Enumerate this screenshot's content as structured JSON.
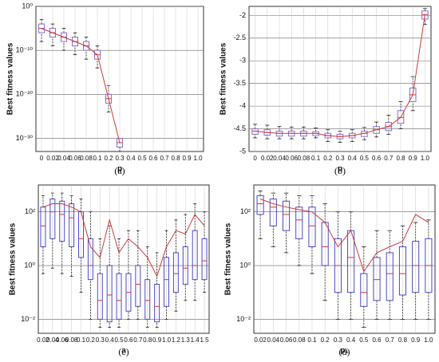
{
  "chart_data": [
    {
      "type": "box",
      "panel_label": "(a)",
      "xlabel": "p",
      "ylabel": "Best fitness values",
      "log_y": true,
      "grid": true,
      "box_color": "#8a6fd0",
      "line_color": "#d03a3a",
      "categories": [
        "0",
        "0.02",
        "0.04",
        "0.06",
        "0.08",
        "0.1",
        "0.2",
        "0.3",
        "0.4",
        "0.5",
        "0.6",
        "0.7",
        "0.8",
        "0.9",
        "1.0"
      ],
      "low": [
        1e-08,
        1e-09,
        1e-10,
        1e-11,
        1e-12,
        1e-14,
        1e-24,
        1e-33,
        null,
        null,
        null,
        null,
        null,
        null,
        null
      ],
      "q1": [
        1e-06,
        1e-07,
        1e-08,
        1e-09,
        1e-10,
        1e-12,
        1e-22,
        1e-32,
        null,
        null,
        null,
        null,
        null,
        null,
        null
      ],
      "median": [
        1e-05,
        1e-06,
        1e-07,
        1e-08,
        1e-09,
        1e-11,
        1e-21,
        1e-31,
        null,
        null,
        null,
        null,
        null,
        null,
        null
      ],
      "q3": [
        0.0001,
        1e-05,
        1e-06,
        1e-07,
        1e-08,
        1e-10,
        1e-20,
        1e-30,
        null,
        null,
        null,
        null,
        null,
        null,
        null
      ],
      "high": [
        0.001,
        0.0001,
        1e-05,
        1e-06,
        1e-07,
        1e-09,
        1e-18,
        1e-30,
        null,
        null,
        null,
        null,
        null,
        null,
        null
      ],
      "mean": [
        1e-05,
        1e-06,
        1e-07,
        1e-08,
        1e-09,
        1e-11,
        1e-21,
        1e-31,
        null,
        null,
        null,
        null,
        null,
        null,
        null
      ],
      "ylim": [
        1e-33,
        1
      ],
      "yticks": [
        {
          "value": 1,
          "label": "10⁰"
        },
        {
          "value": 1e-10,
          "label": "10⁻¹⁰"
        },
        {
          "value": 1e-20,
          "label": "10⁻²⁰"
        },
        {
          "value": 1e-30,
          "label": "10⁻³⁰"
        }
      ]
    },
    {
      "type": "box",
      "panel_label": "(b)",
      "xlabel": "p",
      "ylabel": "Best fitness values",
      "log_y": false,
      "grid": true,
      "box_color": "#8a6fd0",
      "line_color": "#d03a3a",
      "categories": [
        "0",
        "0.02",
        "0.04",
        "0.06",
        "0.08",
        "0.1",
        "0.2",
        "0.3",
        "0.4",
        "0.5",
        "0.6",
        "0.7",
        "0.8",
        "0.9",
        "1.0"
      ],
      "low": [
        -4.7,
        -4.72,
        -4.72,
        -4.72,
        -4.72,
        -4.7,
        -4.78,
        -4.8,
        -4.78,
        -4.74,
        -4.68,
        -4.62,
        -4.5,
        -4.1,
        -2.2
      ],
      "q1": [
        -4.62,
        -4.64,
        -4.66,
        -4.66,
        -4.66,
        -4.65,
        -4.7,
        -4.72,
        -4.7,
        -4.67,
        -4.6,
        -4.54,
        -4.38,
        -3.9,
        -2.08
      ],
      "median": [
        -4.55,
        -4.58,
        -4.6,
        -4.6,
        -4.6,
        -4.6,
        -4.65,
        -4.67,
        -4.65,
        -4.6,
        -4.52,
        -4.45,
        -4.25,
        -3.75,
        -1.98
      ],
      "q3": [
        -4.5,
        -4.52,
        -4.55,
        -4.55,
        -4.55,
        -4.56,
        -4.6,
        -4.62,
        -4.6,
        -4.55,
        -4.45,
        -4.36,
        -4.1,
        -3.6,
        -1.9
      ],
      "high": [
        -4.4,
        -4.42,
        -4.45,
        -4.46,
        -4.46,
        -4.48,
        -4.52,
        -4.55,
        -4.52,
        -4.47,
        -4.35,
        -4.2,
        -3.9,
        -3.35,
        -1.85
      ],
      "mean": [
        -4.55,
        -4.58,
        -4.6,
        -4.6,
        -4.6,
        -4.6,
        -4.65,
        -4.67,
        -4.65,
        -4.6,
        -4.52,
        -4.45,
        -4.25,
        -3.75,
        -1.98
      ],
      "ylim": [
        -5,
        -1.8
      ],
      "yticks": [
        -5,
        -4.5,
        -4,
        -3.5,
        -3,
        -2.5,
        -2
      ]
    },
    {
      "type": "box",
      "panel_label": "(c)",
      "xlabel": "a",
      "ylabel": "Best fitness values",
      "log_y": true,
      "grid": true,
      "box_color": "#4a4ac8",
      "line_color": "#d03a3a",
      "categories": [
        "0.02",
        "0.04",
        "0.06",
        "0.08",
        "0.1",
        "0.2",
        "0.3",
        "0.4",
        "0.5",
        "0.6",
        "0.7",
        "0.8",
        "0.9",
        "1.0",
        "1.2",
        "1.3",
        "1.4",
        "1.5"
      ],
      "low": [
        0.5,
        0.8,
        0.5,
        0.4,
        0.1,
        0.01,
        0.005,
        0.005,
        0.005,
        0.01,
        0.01,
        0.005,
        0.005,
        0.01,
        0.02,
        0.05,
        0.05,
        0.1
      ],
      "q1": [
        5,
        10,
        8,
        5,
        2,
        0.3,
        0.01,
        0.008,
        0.01,
        0.02,
        0.03,
        0.01,
        0.008,
        0.03,
        0.1,
        0.2,
        0.3,
        0.3
      ],
      "median": [
        30,
        100,
        80,
        60,
        10,
        1,
        0.05,
        0.08,
        0.05,
        0.1,
        0.2,
        0.05,
        0.03,
        0.3,
        0.5,
        0.8,
        1,
        1.5
      ],
      "q3": [
        150,
        300,
        250,
        200,
        100,
        10,
        0.5,
        1,
        0.5,
        0.5,
        1,
        0.3,
        0.2,
        2,
        3,
        5,
        20,
        10
      ],
      "high": [
        400,
        500,
        500,
        400,
        300,
        100,
        10,
        30,
        10,
        20,
        20,
        5,
        3,
        20,
        50,
        80,
        200,
        100
      ],
      "mean": [
        150,
        200,
        200,
        150,
        100,
        5,
        2,
        50,
        3,
        10,
        5,
        2,
        0.4,
        5,
        20,
        15,
        80,
        30
      ],
      "ylim": [
        0.003,
        1000
      ],
      "yticks": [
        {
          "value": 0.01,
          "label": "10⁻²"
        },
        {
          "value": 1,
          "label": "10⁰"
        },
        {
          "value": 100,
          "label": "10²"
        }
      ]
    },
    {
      "type": "box",
      "panel_label": "(d)",
      "xlabel": "p₁",
      "ylabel": "Best fitness values",
      "log_y": true,
      "grid": true,
      "box_color": "#4a4ac8",
      "line_color": "#d03a3a",
      "categories": [
        "0.02",
        "0.04",
        "0.06",
        "0.08",
        "0.1",
        "0.2",
        "0.3",
        "0.4",
        "0.5",
        "0.6",
        "0.7",
        "0.8",
        "0.9",
        "1.0"
      ],
      "low": [
        10,
        5,
        3,
        1,
        0.5,
        0.05,
        0.01,
        0.01,
        0.005,
        0.01,
        0.01,
        0.01,
        0.01,
        0.01
      ],
      "q1": [
        80,
        30,
        20,
        10,
        5,
        1,
        0.1,
        0.1,
        0.03,
        0.05,
        0.05,
        0.08,
        0.1,
        0.1
      ],
      "median": [
        200,
        150,
        80,
        50,
        30,
        5,
        1,
        2,
        0.1,
        0.3,
        0.5,
        0.5,
        1,
        1
      ],
      "q3": [
        400,
        300,
        250,
        150,
        150,
        40,
        10,
        20,
        0.5,
        2,
        3,
        5,
        8,
        10
      ],
      "high": [
        600,
        500,
        500,
        400,
        400,
        200,
        100,
        100,
        5,
        20,
        20,
        30,
        40,
        50
      ],
      "mean": [
        300,
        200,
        150,
        120,
        100,
        40,
        5,
        20,
        0.6,
        3,
        5,
        8,
        80,
        40
      ],
      "ylim": [
        0.003,
        1000
      ],
      "yticks": [
        {
          "value": 0.01,
          "label": "10⁻²"
        },
        {
          "value": 1,
          "label": "10⁰"
        },
        {
          "value": 100,
          "label": "10²"
        }
      ]
    }
  ]
}
